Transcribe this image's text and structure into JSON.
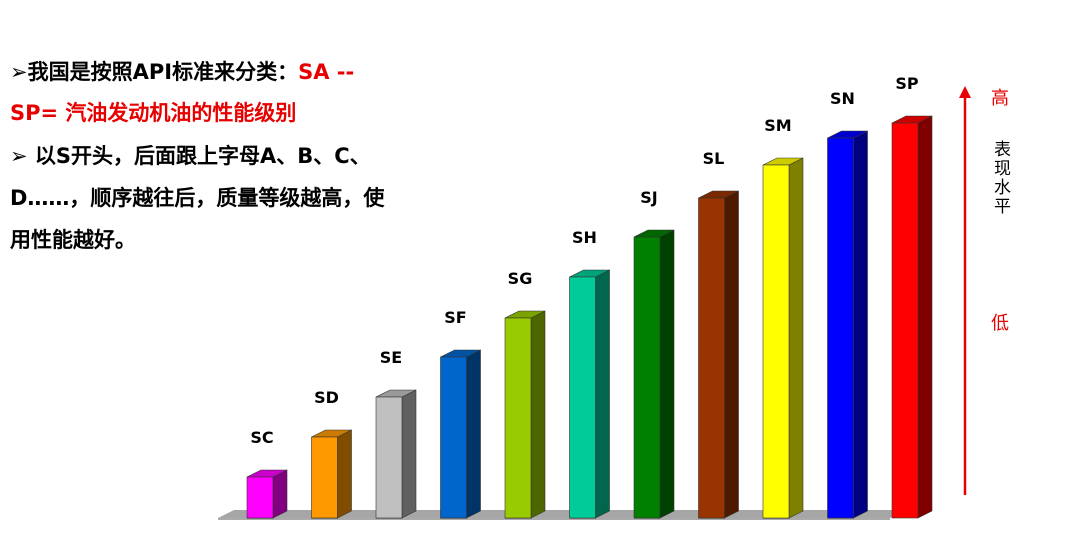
{
  "intro": {
    "black": "我国是按照API标准来分类：",
    "red_1": "SA --",
    "red_2": "SP= 汽油发动机油的性能级别"
  },
  "detail": {
    "lines": [
      "以S开头，后面跟上字母A、B、C、",
      "D……，顺序越往后，质量等级越高，使",
      "用性能越好。"
    ]
  },
  "scale": {
    "high": "高",
    "label": "表现水平",
    "low": "低"
  },
  "chart_data": {
    "type": "bar",
    "categories": [
      "SC",
      "SD",
      "SE",
      "SF",
      "SG",
      "SH",
      "SJ",
      "SL",
      "SM",
      "SN",
      "SP"
    ],
    "values": [
      41,
      81,
      121,
      161,
      200,
      241,
      281,
      320,
      353,
      380,
      395
    ],
    "colors": [
      "#ff00ff",
      "#ff9900",
      "#c0c0c0",
      "#0066cc",
      "#99cc00",
      "#00cc99",
      "#008000",
      "#993300",
      "#ffff00",
      "#0000ff",
      "#ff0000"
    ]
  }
}
